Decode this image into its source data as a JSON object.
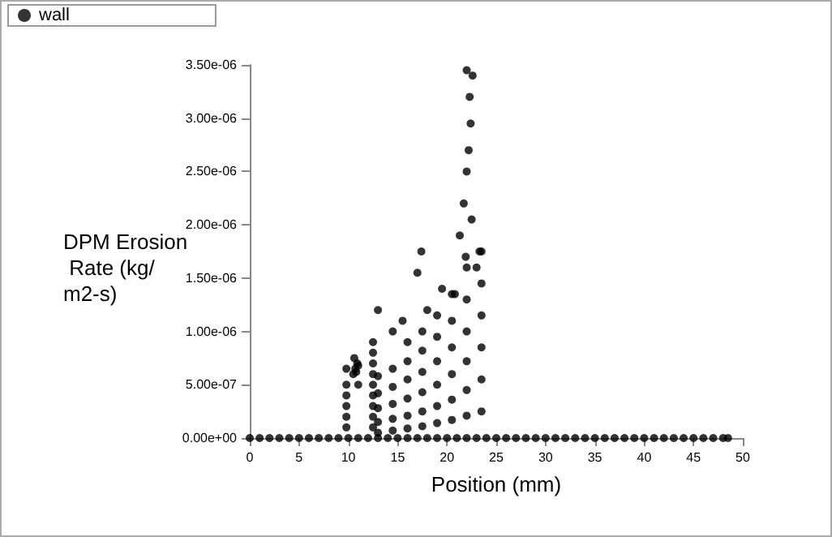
{
  "chart_data": {
    "type": "scatter",
    "xlabel": "Position (mm)",
    "ylabel": "DPM Erosion Rate (kg/m2-s)",
    "legend": "top left",
    "grid": false,
    "marker": "circle",
    "xlim": [
      0,
      50
    ],
    "xticks": [
      0,
      5,
      10,
      15,
      20,
      25,
      30,
      35,
      40,
      45,
      50
    ],
    "ylim": [
      0,
      3.5e-06
    ],
    "yticks": [
      {
        "value": 0,
        "label": "0.00e+00"
      },
      {
        "value": 5e-07,
        "label": "5.00e-07"
      },
      {
        "value": 1e-06,
        "label": "1.00e-06"
      },
      {
        "value": 1.5e-06,
        "label": "1.50e-06"
      },
      {
        "value": 2e-06,
        "label": "2.00e-06"
      },
      {
        "value": 2.5e-06,
        "label": "2.50e-06"
      },
      {
        "value": 3e-06,
        "label": "3.00e-06"
      },
      {
        "value": 3.5e-06,
        "label": "3.50e-06"
      }
    ],
    "series": [
      {
        "name": "wall",
        "color": "#000000",
        "x": [
          0,
          1,
          2,
          3,
          4,
          5,
          6,
          7,
          8,
          9,
          10,
          11,
          12,
          13,
          14,
          15,
          16,
          17,
          18,
          19,
          20,
          21,
          22,
          23,
          24,
          25,
          26,
          27,
          28,
          29,
          30,
          31,
          32,
          33,
          34,
          35,
          36,
          37,
          38,
          39,
          40,
          41,
          42,
          43,
          44,
          45,
          46,
          47,
          48,
          48.5,
          9.8,
          9.8,
          9.8,
          9.8,
          9.8,
          9.8,
          10.5,
          10.7,
          10.9,
          10.6,
          10.8,
          11,
          11,
          12.5,
          12.5,
          12.5,
          12.5,
          12.5,
          12.5,
          12.5,
          12.5,
          12.5,
          13,
          14.5,
          16,
          17.5,
          19,
          20.5,
          22,
          23.5,
          13,
          14.5,
          16,
          17.5,
          19,
          20.5,
          22,
          23.5,
          13,
          14.5,
          16,
          17.5,
          19,
          20.5,
          22,
          23.5,
          13,
          14.5,
          16,
          17.5,
          19,
          20.5,
          22,
          23.5,
          13,
          14.5,
          16,
          17.5,
          19,
          20.5,
          22,
          23.5,
          16,
          17.5,
          19,
          20.5,
          22,
          23.5,
          15.5,
          13,
          17,
          17.4,
          19.5,
          20.8,
          21.3,
          21.7,
          22,
          22.2,
          22.4,
          22,
          22.6,
          22.3,
          22.5,
          21.9,
          23,
          23.3,
          14.5,
          18
        ],
        "values": [
          0,
          0,
          0,
          0,
          0,
          0,
          0,
          0,
          0,
          0,
          0,
          0,
          0,
          0,
          0,
          0,
          0,
          0,
          0,
          0,
          0,
          0,
          0,
          0,
          0,
          0,
          0,
          0,
          0,
          0,
          0,
          0,
          0,
          0,
          0,
          0,
          0,
          0,
          0,
          0,
          0,
          0,
          0,
          0,
          0,
          0,
          0,
          0,
          0,
          0,
          1e-07,
          2e-07,
          3e-07,
          4e-07,
          5e-07,
          6.5e-07,
          6e-07,
          6.5e-07,
          7e-07,
          7.5e-07,
          6.2e-07,
          6.8e-07,
          5e-07,
          1e-07,
          2e-07,
          3e-07,
          4e-07,
          5e-07,
          6e-07,
          7e-07,
          8e-07,
          9e-07,
          5e-08,
          7e-08,
          9e-08,
          1.1e-07,
          1.4e-07,
          1.7e-07,
          2.1e-07,
          2.5e-07,
          1.5e-07,
          1.8e-07,
          2.1e-07,
          2.5e-07,
          3e-07,
          3.6e-07,
          4.5e-07,
          5.5e-07,
          2.8e-07,
          3.2e-07,
          3.7e-07,
          4.3e-07,
          5e-07,
          6e-07,
          7.2e-07,
          8.5e-07,
          4.2e-07,
          4.8e-07,
          5.5e-07,
          6.2e-07,
          7.2e-07,
          8.5e-07,
          1e-06,
          1.15e-06,
          5.8e-07,
          6.5e-07,
          7.2e-07,
          8.2e-07,
          9.5e-07,
          1.1e-06,
          1.3e-06,
          1.45e-06,
          9e-07,
          1e-06,
          1.15e-06,
          1.35e-06,
          1.6e-06,
          1.75e-06,
          1.1e-06,
          1.2e-06,
          1.55e-06,
          1.75e-06,
          1.4e-06,
          1.35e-06,
          1.9e-06,
          2.2e-06,
          2.5e-06,
          2.7e-06,
          2.95e-06,
          3.45e-06,
          3.4e-06,
          3.2e-06,
          2.05e-06,
          1.7e-06,
          1.6e-06,
          1.75e-06,
          1e-06,
          1.2e-06
        ]
      }
    ]
  }
}
